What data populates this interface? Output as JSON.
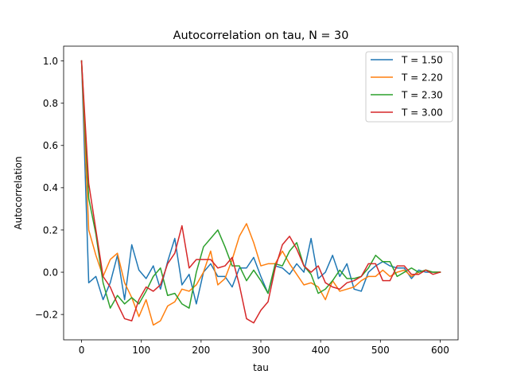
{
  "chart_data": {
    "type": "line",
    "title": "Autocorrelation on tau, N = 30",
    "xlabel": "tau",
    "ylabel": "Autocorrelation",
    "xlim": [
      -30,
      630
    ],
    "ylim": [
      -0.32,
      1.07
    ],
    "xticks": [
      0,
      100,
      200,
      300,
      400,
      500,
      600
    ],
    "xtick_labels": [
      "0",
      "100",
      "200",
      "300",
      "400",
      "500",
      "600"
    ],
    "yticks": [
      -0.2,
      0.0,
      0.2,
      0.4,
      0.6,
      0.8,
      1.0
    ],
    "ytick_labels": [
      "−0.2",
      "0.0",
      "0.2",
      "0.4",
      "0.6",
      "0.8",
      "1.0"
    ],
    "grid": false,
    "legend_position": "top-right",
    "x": [
      0,
      12,
      24,
      36,
      48,
      60,
      72,
      84,
      96,
      108,
      120,
      132,
      144,
      156,
      168,
      180,
      192,
      204,
      216,
      228,
      240,
      252,
      264,
      276,
      288,
      300,
      312,
      324,
      336,
      348,
      360,
      372,
      384,
      396,
      408,
      420,
      432,
      444,
      456,
      468,
      480,
      492,
      504,
      516,
      528,
      540,
      552,
      564,
      576,
      588,
      600
    ],
    "series": [
      {
        "name": "T = 1.50",
        "color": "#1f77b4",
        "values": [
          1.0,
          -0.05,
          -0.02,
          -0.13,
          -0.05,
          0.08,
          -0.13,
          0.13,
          0.01,
          -0.03,
          0.03,
          -0.08,
          0.05,
          0.16,
          -0.06,
          -0.01,
          -0.15,
          0.0,
          0.04,
          -0.02,
          -0.02,
          -0.07,
          0.02,
          0.02,
          0.07,
          -0.02,
          -0.1,
          0.03,
          0.02,
          -0.01,
          0.04,
          0.0,
          0.16,
          -0.03,
          0.0,
          0.08,
          -0.02,
          0.04,
          -0.08,
          -0.09,
          0.0,
          0.03,
          0.05,
          0.03,
          0.02,
          0.02,
          -0.03,
          0.01,
          0.0,
          0.0,
          0.0
        ]
      },
      {
        "name": "T = 2.20",
        "color": "#ff7f0e",
        "values": [
          1.0,
          0.2,
          0.08,
          -0.02,
          0.06,
          0.09,
          -0.05,
          -0.12,
          -0.21,
          -0.13,
          -0.25,
          -0.23,
          -0.16,
          -0.14,
          -0.08,
          -0.09,
          -0.06,
          0.0,
          0.1,
          -0.06,
          -0.03,
          0.06,
          0.17,
          0.23,
          0.14,
          0.03,
          0.04,
          0.04,
          0.1,
          0.04,
          -0.01,
          -0.06,
          -0.05,
          -0.07,
          -0.13,
          -0.04,
          -0.09,
          -0.08,
          -0.07,
          -0.04,
          -0.02,
          -0.02,
          0.01,
          -0.02,
          0.0,
          0.01,
          -0.02,
          0.0,
          0.01,
          0.0,
          0.0
        ]
      },
      {
        "name": "T = 2.30",
        "color": "#2ca02c",
        "values": [
          1.0,
          0.35,
          0.18,
          -0.05,
          -0.17,
          -0.11,
          -0.15,
          -0.12,
          -0.15,
          -0.09,
          -0.02,
          0.02,
          -0.11,
          -0.1,
          -0.15,
          -0.17,
          0.0,
          0.12,
          0.16,
          0.2,
          0.12,
          0.03,
          0.03,
          -0.04,
          0.01,
          -0.04,
          -0.1,
          0.04,
          0.03,
          0.1,
          0.14,
          0.03,
          -0.01,
          -0.1,
          -0.08,
          -0.04,
          0.01,
          -0.03,
          -0.03,
          -0.02,
          0.02,
          0.08,
          0.05,
          0.05,
          -0.02,
          0.0,
          0.02,
          0.0,
          0.01,
          0.0,
          0.0
        ]
      },
      {
        "name": "T = 3.00",
        "color": "#d62728",
        "values": [
          1.0,
          0.42,
          0.2,
          -0.02,
          -0.07,
          -0.15,
          -0.22,
          -0.23,
          -0.13,
          -0.07,
          -0.09,
          -0.06,
          0.04,
          0.09,
          0.22,
          0.02,
          0.06,
          0.06,
          0.06,
          0.02,
          0.03,
          0.07,
          -0.06,
          -0.22,
          -0.24,
          -0.18,
          -0.14,
          0.02,
          0.13,
          0.17,
          0.11,
          0.03,
          0.0,
          0.03,
          -0.05,
          -0.07,
          -0.08,
          -0.05,
          -0.04,
          -0.02,
          0.04,
          0.04,
          -0.04,
          -0.04,
          0.03,
          0.03,
          -0.01,
          -0.01,
          0.01,
          -0.01,
          0.0
        ]
      }
    ]
  }
}
